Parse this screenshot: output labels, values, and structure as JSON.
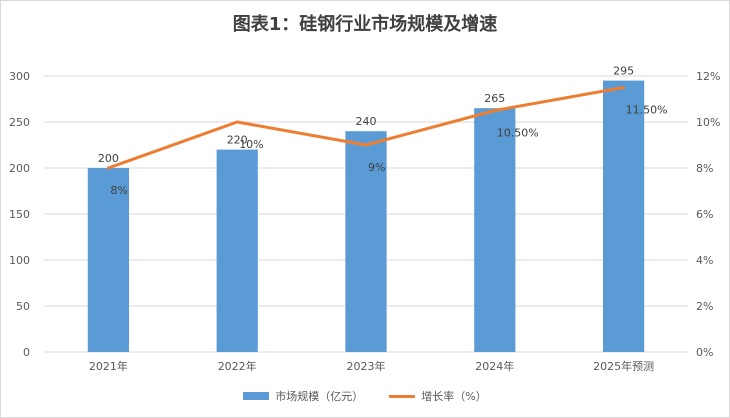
{
  "chart_data": {
    "type": "bar+line",
    "title": "图表1：硅钢行业市场规模及增速",
    "categories": [
      "2021年",
      "2022年",
      "2023年",
      "2024年",
      "2025年预测"
    ],
    "series": [
      {
        "name": "市场规模（亿元）",
        "type": "bar",
        "axis": "left",
        "values": [
          200,
          220,
          240,
          265,
          295
        ],
        "labels": [
          "200",
          "220",
          "240",
          "265",
          "295"
        ]
      },
      {
        "name": "增长率（%）",
        "type": "line",
        "axis": "right",
        "values": [
          8,
          10,
          9,
          10.5,
          11.5
        ],
        "labels": [
          "8%",
          "10%",
          "9%",
          "10.50%",
          "11.50%"
        ]
      }
    ],
    "y_left": {
      "ylim": [
        0,
        300
      ],
      "ticks": [
        "0",
        "50",
        "100",
        "150",
        "200",
        "250",
        "300"
      ]
    },
    "y_right": {
      "ylim": [
        0,
        12
      ],
      "ticks": [
        "0%",
        "2%",
        "4%",
        "6%",
        "8%",
        "10%",
        "12%"
      ]
    },
    "grid": true,
    "legend_position": "bottom",
    "colors": {
      "bar": "#5b9bd5",
      "line": "#ed7d31"
    }
  }
}
